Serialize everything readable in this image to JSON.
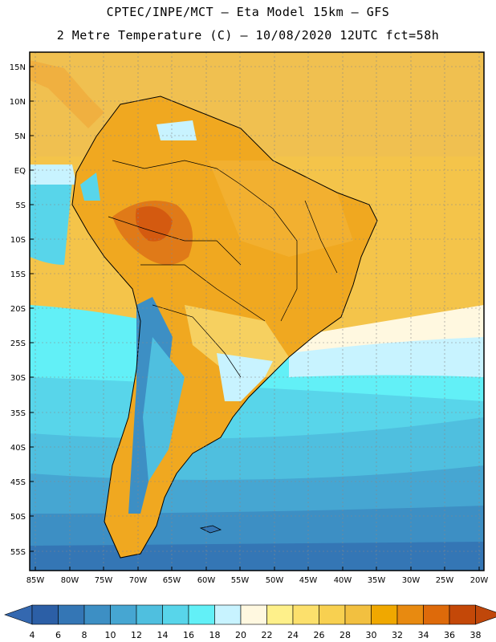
{
  "header": {
    "line1": "CPTEC/INPE/MCT –  Eta Model 15km – GFS",
    "line2": "2 Metre Temperature (C) – 10/08/2020 12UTC fct=58h"
  },
  "axes": {
    "lat_labels": [
      "15N",
      "10N",
      "5N",
      "EQ",
      "5S",
      "10S",
      "15S",
      "20S",
      "25S",
      "30S",
      "35S",
      "40S",
      "45S",
      "50S",
      "55S"
    ],
    "lon_labels": [
      "85W",
      "80W",
      "75W",
      "70W",
      "65W",
      "60W",
      "55W",
      "50W",
      "45W",
      "40W",
      "35W",
      "30W",
      "25W",
      "20W"
    ]
  },
  "colorbar": {
    "labels": [
      "4",
      "6",
      "8",
      "10",
      "12",
      "14",
      "16",
      "18",
      "20",
      "22",
      "24",
      "26",
      "28",
      "30",
      "32",
      "34",
      "36",
      "38"
    ],
    "colors": [
      "#2c5fa6",
      "#3476b5",
      "#3d8fc4",
      "#46a6d2",
      "#4fbfdf",
      "#58d5ea",
      "#62f0f7",
      "#c8f3ff",
      "#fff8e0",
      "#fef08a",
      "#fce06c",
      "#f8d050",
      "#f2c040",
      "#f0a800",
      "#e88a10",
      "#de6a0a",
      "#c44808"
    ],
    "low_arrow_color": "#3468b0",
    "high_arrow_color": "#c0470a"
  }
}
